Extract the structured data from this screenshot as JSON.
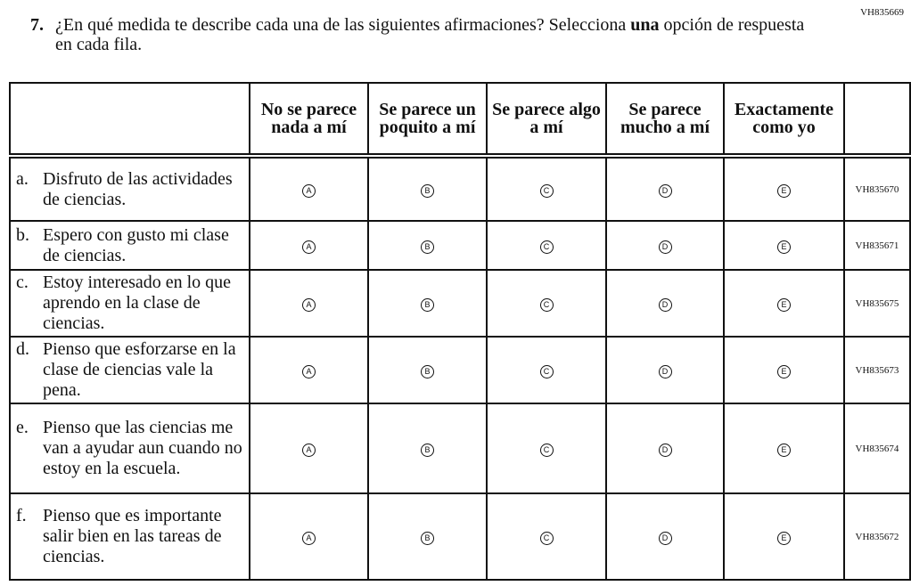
{
  "item_id": "VH835669",
  "question": {
    "number": "7.",
    "text_before": "¿En qué medida te describe cada una de las siguientes afirmaciones? Selecciona ",
    "text_bold": "una",
    "text_after": " opción de respuesta en cada fila."
  },
  "columns": [
    "No se parece nada a mí",
    "Se parece un poquito a mí",
    "Se parece algo a mí",
    "Se parece mucho a mí",
    "Exactamente como yo"
  ],
  "options": [
    "A",
    "B",
    "C",
    "D",
    "E"
  ],
  "rows": [
    {
      "letter": "a.",
      "text": "Disfruto de las actividades de ciencias.",
      "id": "VH835670"
    },
    {
      "letter": "b.",
      "text": "Espero con gusto mi clase de ciencias.",
      "id": "VH835671"
    },
    {
      "letter": "c.",
      "text": "Estoy interesado en lo que aprendo en la clase de ciencias.",
      "id": "VH835675"
    },
    {
      "letter": "d.",
      "text": "Pienso que esforzarse en la clase de ciencias vale la pena.",
      "id": "VH835673"
    },
    {
      "letter": "e.",
      "text": "Pienso que las ciencias me van a ayudar aun cuando no estoy en la escuela.",
      "id": "VH835674"
    },
    {
      "letter": "f.",
      "text": "Pienso que es importante salir bien en las tareas de ciencias.",
      "id": "VH835672"
    }
  ]
}
